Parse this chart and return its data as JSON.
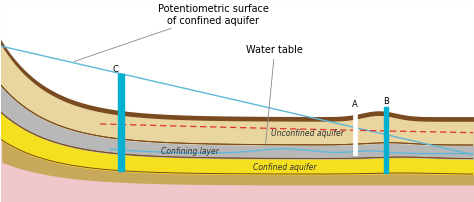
{
  "figsize": [
    4.74,
    2.03
  ],
  "dpi": 100,
  "colors": {
    "white_bg": "#ffffff",
    "pink_bg": "#f0c8cc",
    "tan_surface": "#d4b97a",
    "tan_light": "#e8d5a0",
    "tan_lower": "#c8a85a",
    "gray_layer": "#b8b8b8",
    "yellow_aquifer": "#f5e020",
    "brown_line": "#7a4a20",
    "blue_water": "#60b8d8",
    "cyan_well": "#00b0d0",
    "white_well": "#f0f0f0",
    "red_dashed": "#e03030",
    "dark_line": "#5a3010"
  },
  "labels": {
    "potentiometric": "Potentiometric surface\nof confined aquifer",
    "water_table": "Water table",
    "confining_layer": "Confining layer",
    "unconfined": "Unconfined aquifer",
    "confined": "Confined aquifer",
    "well_C": "C",
    "well_A": "A",
    "well_B": "B"
  },
  "font_size": 7
}
